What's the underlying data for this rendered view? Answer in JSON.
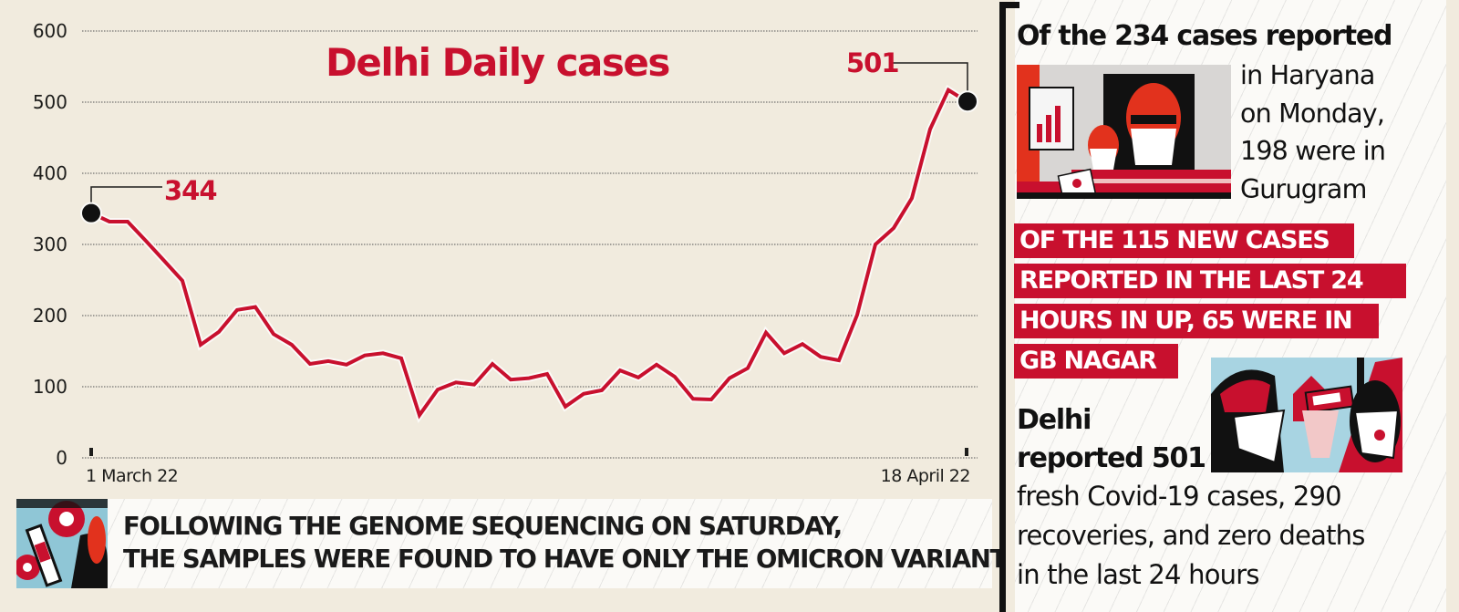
{
  "chart_data": {
    "type": "line",
    "title": "Delhi Daily cases",
    "xlabel": "",
    "ylabel": "",
    "ylim": [
      0,
      600
    ],
    "yticks": [
      0,
      100,
      200,
      300,
      400,
      500,
      600
    ],
    "ytick_labels": [
      "0",
      "100",
      "200",
      "300",
      "400",
      "500",
      "600"
    ],
    "xtick_labels": [
      "1 March 22",
      "18 April 22"
    ],
    "x_range": [
      "1 March 22",
      "18 April 22"
    ],
    "grid": true,
    "legend": null,
    "series": [
      {
        "name": "Delhi daily cases",
        "color": "#c8102e",
        "values": [
          344,
          332,
          332,
          305,
          277,
          249,
          159,
          177,
          208,
          212,
          174,
          159,
          132,
          136,
          131,
          144,
          147,
          140,
          60,
          96,
          106,
          103,
          132,
          110,
          112,
          118,
          72,
          90,
          95,
          123,
          113,
          131,
          114,
          83,
          82,
          112,
          126,
          176,
          147,
          160,
          142,
          137,
          201,
          300,
          323,
          365,
          462,
          517,
          501
        ]
      }
    ],
    "annotations": [
      {
        "label": "344",
        "at": "1 March 22",
        "value": 344
      },
      {
        "label": "501",
        "at": "18 April 22",
        "value": 501
      }
    ]
  },
  "chart": {
    "title": "Delhi Daily cases",
    "start_label": "344",
    "end_label": "501",
    "x_start": "1 March 22",
    "x_end": "18 April 22",
    "y_labels": [
      "600",
      "500",
      "400",
      "300",
      "200",
      "100",
      "0"
    ],
    "line_color": "#c8102e"
  },
  "banner": {
    "line1": "FOLLOWING THE GENOME SEQUENCING ON SATURDAY,",
    "line2": "THE SAMPLES WERE FOUND TO HAVE ONLY THE OMICRON VARIANT",
    "icon": "virus-vaccine-illustration"
  },
  "panel": {
    "haryana": {
      "heading": "Of the 234 cases reported",
      "lines": [
        "in Haryana",
        "on Monday,",
        "198 were in",
        "Gurugram"
      ],
      "icon": "masked-officials-press-illustration"
    },
    "up": {
      "lines": [
        "OF THE 115 NEW CASES",
        "REPORTED IN THE LAST 24",
        "HOURS IN UP, 65 WERE IN",
        "GB NAGAR"
      ]
    },
    "delhi": {
      "heading_line1": "Delhi",
      "heading_line2": "reported 501",
      "lines": [
        "fresh Covid-19 cases, 290",
        "recoveries, and zero deaths",
        "in the last 24 hours"
      ],
      "icon": "thermal-screening-illustration"
    }
  },
  "colors": {
    "background": "#f1ebde",
    "accent_red": "#c8102e",
    "text": "#1a1a1a",
    "panel_bg": "#fbfaf7"
  }
}
